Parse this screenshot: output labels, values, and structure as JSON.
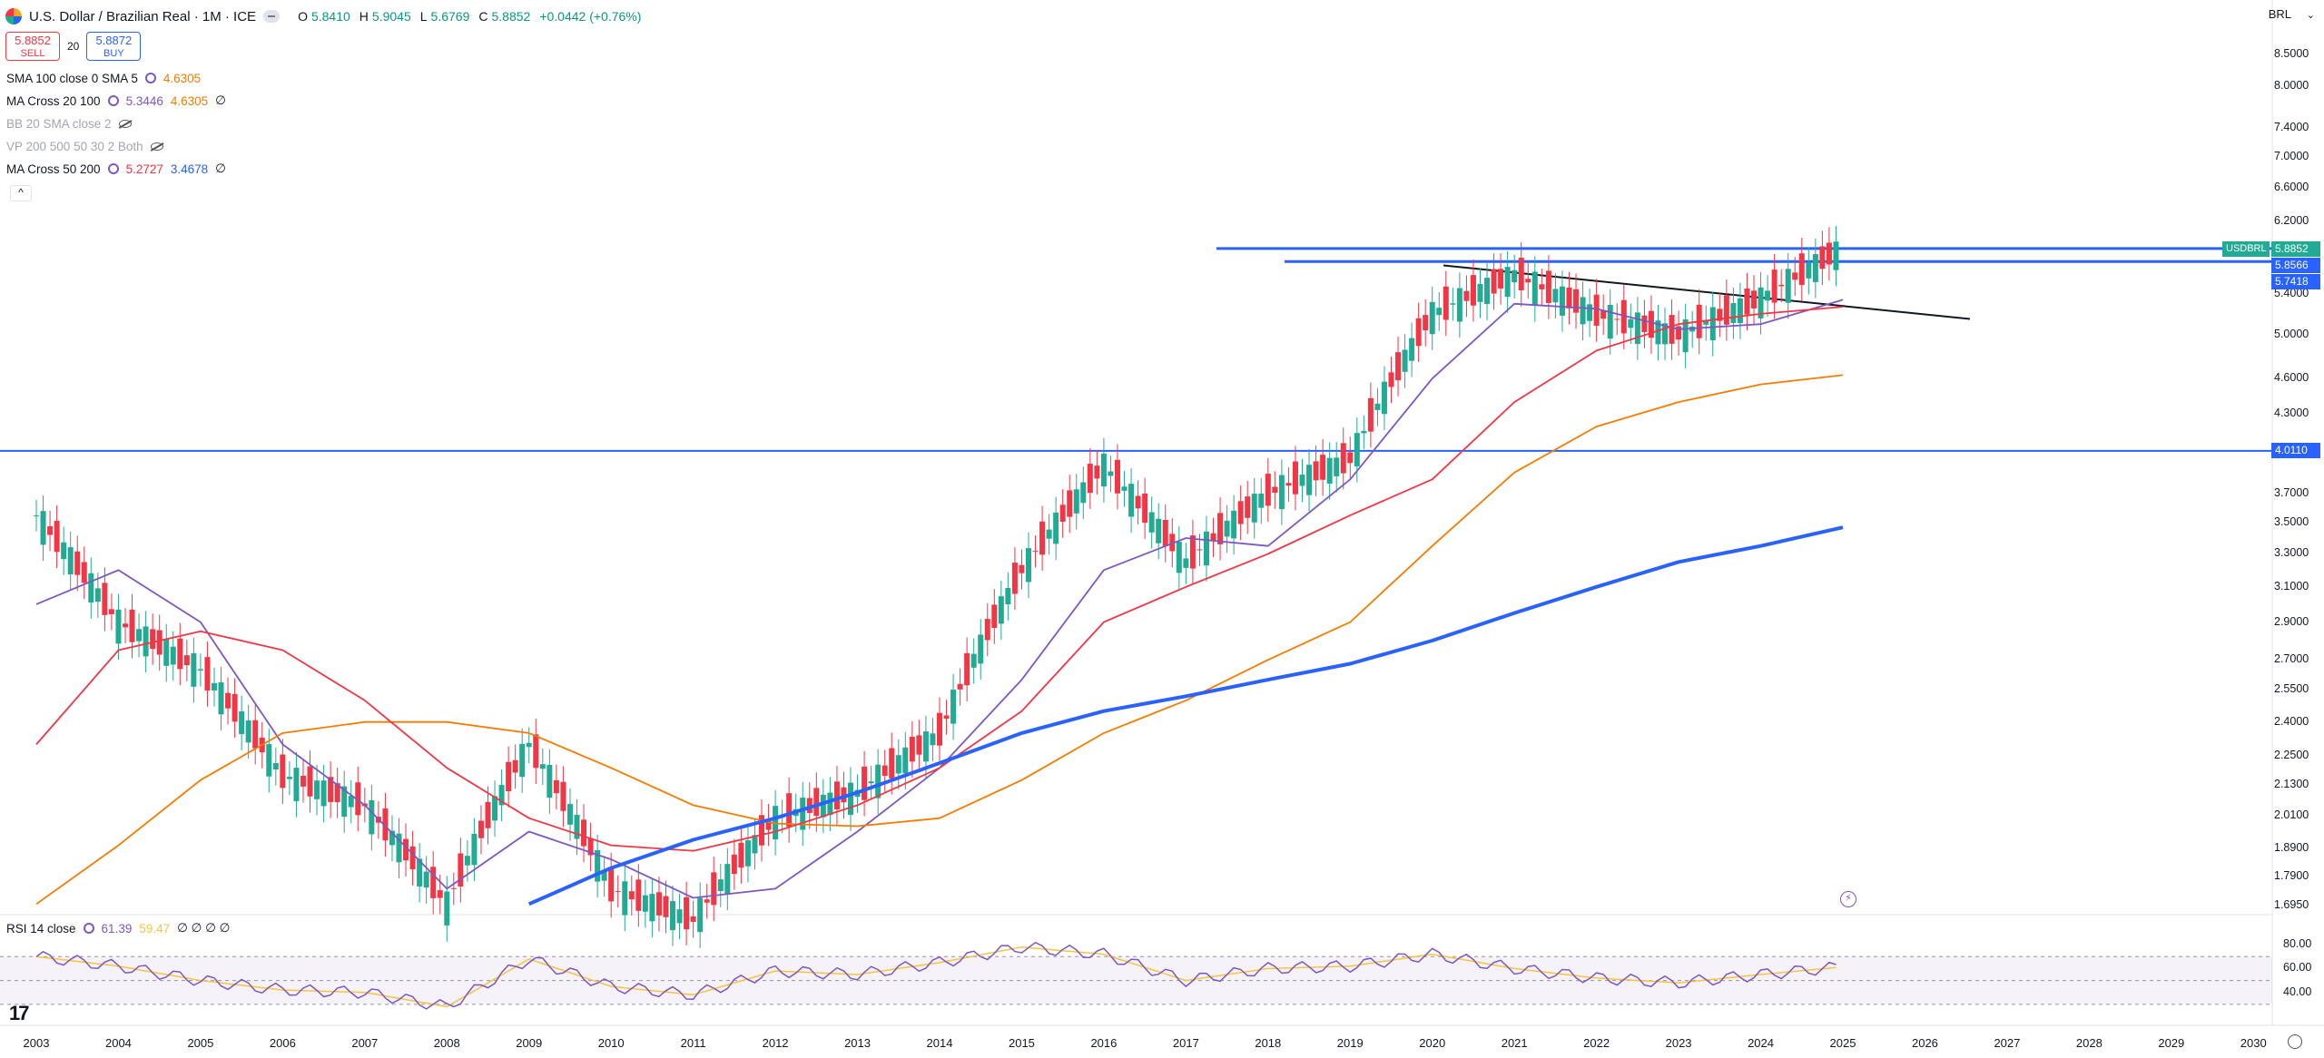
{
  "header": {
    "title": "U.S. Dollar / Brazilian Real · 1M · ICE",
    "ohlc": [
      {
        "k": "O",
        "v": "5.8410"
      },
      {
        "k": "H",
        "v": "5.9045"
      },
      {
        "k": "L",
        "v": "5.6769"
      },
      {
        "k": "C",
        "v": "5.8852"
      },
      {
        "k": "",
        "v": "+0.0442 (+0.76%)"
      }
    ]
  },
  "trade": {
    "sell_price": "5.8852",
    "sell_label": "SELL",
    "spread": "20",
    "buy_price": "5.8872",
    "buy_label": "BUY"
  },
  "indicators": [
    {
      "name": "SMA 100 close 0 SMA 5",
      "values": [
        "4.6305"
      ],
      "colors": [
        "#f57c00"
      ],
      "faded": false
    },
    {
      "name": "MA Cross 20 100",
      "values": [
        "5.3446",
        "4.6305",
        "∅"
      ],
      "colors": [
        "#7e57c2",
        "#f57c00",
        "#131722"
      ],
      "faded": false
    },
    {
      "name": "BB 20 SMA close 2",
      "values": [],
      "colors": [],
      "faded": true
    },
    {
      "name": "VP 200 500 50 30 2 Both",
      "values": [],
      "colors": [],
      "faded": true
    },
    {
      "name": "MA Cross 50 200",
      "values": [
        "5.2727",
        "3.4678",
        "∅"
      ],
      "colors": [
        "#f23645",
        "#2962ff",
        "#131722"
      ],
      "faded": false
    }
  ],
  "collapse_symbol": "^",
  "currency": "BRL",
  "price_axis": [
    "8.5000",
    "8.0000",
    "7.4000",
    "7.0000",
    "6.6000",
    "6.2000",
    "5.4000",
    "5.0000",
    "4.6000",
    "4.3000",
    "3.7000",
    "3.5000",
    "3.3000",
    "3.1000",
    "2.9000",
    "2.7000",
    "2.5500",
    "2.4000",
    "2.2500",
    "2.1300",
    "2.0100",
    "1.8900",
    "1.7900",
    "1.6950"
  ],
  "price_tags": {
    "symbol": "USDBRL",
    "last": "5.8852",
    "level1": "5.8566",
    "level2": "5.7418",
    "level3": "4.0110"
  },
  "time_axis": [
    "2003",
    "2004",
    "2005",
    "2006",
    "2007",
    "2008",
    "2009",
    "2010",
    "2011",
    "2012",
    "2013",
    "2014",
    "2015",
    "2016",
    "2017",
    "2018",
    "2019",
    "2020",
    "2021",
    "2022",
    "2023",
    "2024",
    "2025",
    "2026",
    "2027",
    "2028",
    "2029",
    "2030"
  ],
  "rsi": {
    "name": "RSI 14 close",
    "value": "61.39",
    "ma": "59.47",
    "extra": "∅ ∅ ∅ ∅",
    "axis": [
      "80.00",
      "60.00",
      "40.00"
    ]
  },
  "colors": {
    "up": "#22ab94",
    "down": "#f23645",
    "ma20": "#7e57c2",
    "ma100": "#f57c00",
    "ma50": "#f23645",
    "ma200": "#2962ff",
    "hline": "#2962ff",
    "rsi": "#7e57c2",
    "rsi_ma": "#f5c542"
  },
  "chart_data": {
    "type": "line",
    "title": "U.S. Dollar / Brazilian Real · 1M · ICE",
    "x": [
      2003,
      2004,
      2005,
      2006,
      2007,
      2008,
      2009,
      2010,
      2011,
      2012,
      2013,
      2014,
      2015,
      2016,
      2017,
      2018,
      2019,
      2020,
      2021,
      2022,
      2023,
      2024,
      2025
    ],
    "series": [
      {
        "name": "USDBRL",
        "values": [
          3.55,
          2.9,
          2.65,
          2.17,
          2.05,
          1.7,
          2.3,
          1.75,
          1.65,
          2.0,
          2.1,
          2.35,
          3.2,
          3.9,
          3.25,
          3.7,
          3.95,
          5.2,
          5.6,
          5.2,
          5.0,
          5.35,
          5.89
        ]
      },
      {
        "name": "MA Cross 20 100",
        "values": [
          3.0,
          3.2,
          2.9,
          2.3,
          2.05,
          1.75,
          1.95,
          1.85,
          1.72,
          1.75,
          1.95,
          2.2,
          2.6,
          3.2,
          3.4,
          3.35,
          3.8,
          4.6,
          5.3,
          5.25,
          5.05,
          5.1,
          5.34
        ]
      },
      {
        "name": "SMA 100 close 0 SMA 5",
        "values": [
          1.7,
          1.9,
          2.15,
          2.35,
          2.4,
          2.4,
          2.35,
          2.2,
          2.05,
          1.98,
          1.97,
          2.0,
          2.15,
          2.35,
          2.5,
          2.7,
          2.9,
          3.35,
          3.85,
          4.2,
          4.4,
          4.55,
          4.63
        ]
      },
      {
        "name": "MA Cross 50 200",
        "values": [
          2.3,
          2.75,
          2.85,
          2.75,
          2.5,
          2.2,
          2.0,
          1.9,
          1.88,
          1.95,
          2.05,
          2.2,
          2.45,
          2.9,
          3.1,
          3.3,
          3.55,
          3.8,
          4.4,
          4.85,
          5.1,
          5.2,
          5.27
        ]
      },
      {
        "name": "MA Cross 50 200 (200)",
        "values": [
          null,
          null,
          null,
          null,
          null,
          null,
          1.7,
          1.82,
          1.92,
          2.0,
          2.1,
          2.22,
          2.35,
          2.45,
          2.52,
          2.6,
          2.68,
          2.8,
          2.95,
          3.1,
          3.25,
          3.35,
          3.47
        ]
      }
    ],
    "horizontal_levels": [
      5.8852,
      5.7418,
      4.011
    ],
    "ylim": [
      1.695,
      8.5
    ],
    "rsi": {
      "ylim": [
        20,
        90
      ],
      "levels": [
        70,
        30
      ],
      "x": [
        2003,
        2004,
        2005,
        2006,
        2007,
        2008,
        2009,
        2010,
        2011,
        2012,
        2013,
        2014,
        2015,
        2016,
        2017,
        2018,
        2019,
        2020,
        2021,
        2022,
        2023,
        2024,
        2025
      ],
      "values": [
        70,
        62,
        50,
        42,
        40,
        28,
        68,
        45,
        38,
        58,
        55,
        65,
        78,
        72,
        50,
        60,
        62,
        72,
        60,
        52,
        48,
        55,
        61.39
      ]
    }
  }
}
